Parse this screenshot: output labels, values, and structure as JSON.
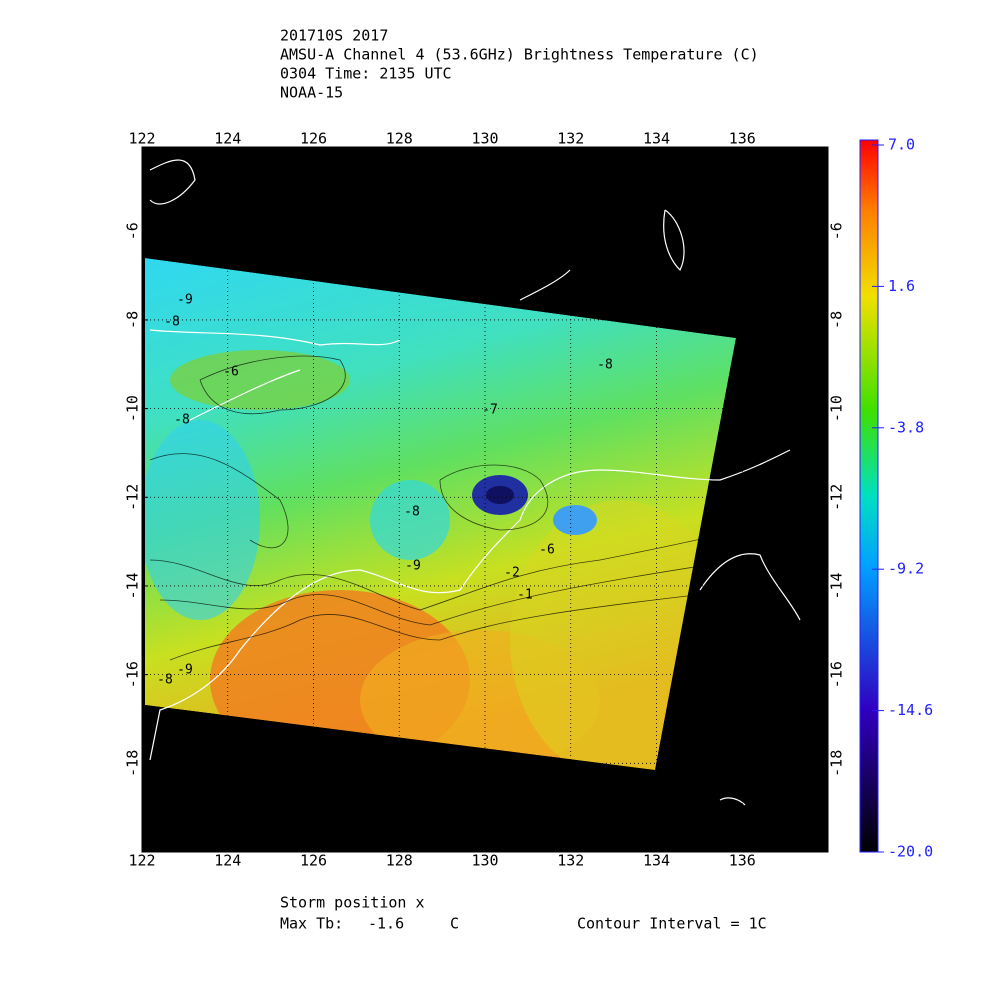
{
  "chart_data": {
    "type": "map",
    "title_lines": [
      "201710S 2017",
      "AMSU-A Channel 4 (53.6GHz) Brightness Temperature (C)",
      "0304 Time: 2135 UTC",
      "NOAA-15"
    ],
    "xlim": [
      122,
      138
    ],
    "xticks": [
      122,
      124,
      126,
      128,
      130,
      132,
      134,
      136
    ],
    "ylim": [
      -20,
      -4.1
    ],
    "yticks": [
      -6,
      -8,
      -10,
      -12,
      -14,
      -16,
      -18
    ],
    "grid": true,
    "colorbar": {
      "lim": [
        -20,
        7
      ],
      "ticks": [
        {
          "value": 7,
          "label": "7.0"
        },
        1.6,
        -3.8,
        -9.2,
        -14.6,
        {
          "value": -20,
          "label": "-20.0"
        }
      ]
    },
    "contour_labels": [
      -9,
      -8,
      -6,
      -8,
      -8,
      -7,
      -8,
      -9,
      -6,
      -2,
      -1,
      -9,
      -8
    ],
    "footer": {
      "storm": "Storm position x",
      "max_label": "Max Tb:",
      "max_value": -1.6,
      "unit": "C",
      "interval": "Contour Interval = 1C"
    }
  }
}
